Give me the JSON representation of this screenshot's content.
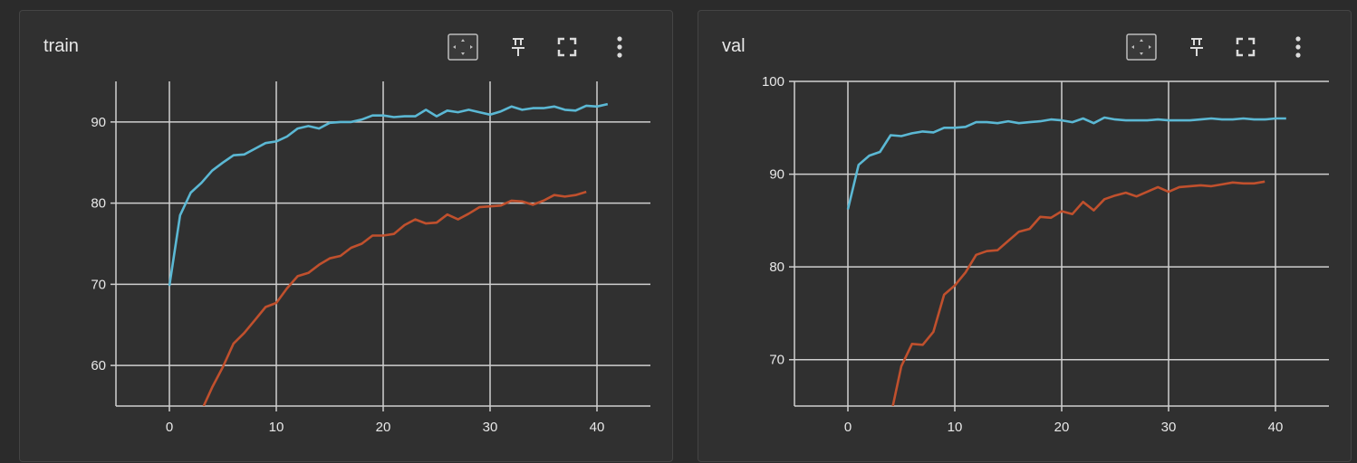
{
  "colors": {
    "background": "#2b2b2b",
    "card": "#303030",
    "grid": "#cfcfcf",
    "text": "#e8e8e8",
    "series_cyan": "#5bb8d4",
    "series_orange": "#c0502d"
  },
  "icons": {
    "fit": "fit-domain-icon",
    "pin": "pin-icon",
    "fullscreen": "fullscreen-icon",
    "more": "more-vert-icon"
  },
  "chart_data": [
    {
      "title": "train",
      "type": "line",
      "xlim": [
        -5,
        45
      ],
      "ylim": [
        55,
        95
      ],
      "xticks": [
        0,
        10,
        20,
        30,
        40
      ],
      "yticks": [
        60,
        70,
        80,
        90
      ],
      "xtick_labels": [
        "0",
        "10",
        "20",
        "30",
        "40"
      ],
      "ytick_labels": [
        "60",
        "70",
        "80",
        "90"
      ],
      "grid": true,
      "series": [
        {
          "color": "#5bb8d4",
          "x": [
            0,
            1,
            2,
            3,
            4,
            5,
            6,
            7,
            8,
            9,
            10,
            11,
            12,
            13,
            14,
            15,
            16,
            17,
            18,
            19,
            20,
            21,
            22,
            23,
            24,
            25,
            26,
            27,
            28,
            29,
            30,
            31,
            32,
            33,
            34,
            35,
            36,
            37,
            38,
            39,
            40,
            41
          ],
          "y": [
            69.8,
            78.5,
            81.3,
            82.5,
            84.0,
            85.0,
            85.9,
            86.0,
            86.7,
            87.4,
            87.6,
            88.2,
            89.2,
            89.5,
            89.2,
            89.9,
            90.0,
            90.0,
            90.3,
            90.8,
            90.8,
            90.6,
            90.7,
            90.7,
            91.5,
            90.7,
            91.4,
            91.2,
            91.5,
            91.2,
            90.9,
            91.3,
            91.9,
            91.5,
            91.7,
            91.7,
            91.9,
            91.5,
            91.4,
            92.0,
            91.9,
            92.2
          ]
        },
        {
          "color": "#c0502d",
          "x": [
            3.2,
            4,
            5,
            6,
            7,
            8,
            9,
            10,
            11,
            12,
            13,
            14,
            15,
            16,
            17,
            18,
            19,
            20,
            21,
            22,
            23,
            24,
            25,
            26,
            27,
            28,
            29,
            30,
            31,
            32,
            33,
            34,
            35,
            36,
            37,
            38,
            39
          ],
          "y": [
            55,
            57.3,
            59.8,
            62.7,
            64.0,
            65.6,
            67.2,
            67.7,
            69.5,
            71.0,
            71.4,
            72.4,
            73.2,
            73.5,
            74.5,
            75.0,
            76.0,
            76.0,
            76.2,
            77.3,
            78.0,
            77.5,
            77.6,
            78.6,
            78.0,
            78.7,
            79.5,
            79.6,
            79.7,
            80.3,
            80.2,
            79.8,
            80.3,
            81.0,
            80.8,
            81.0,
            81.4
          ]
        }
      ]
    },
    {
      "title": "val",
      "type": "line",
      "xlim": [
        -5,
        45
      ],
      "ylim": [
        65,
        100
      ],
      "xticks": [
        0,
        10,
        20,
        30,
        40
      ],
      "yticks": [
        70,
        80,
        90,
        100
      ],
      "xtick_labels": [
        "0",
        "10",
        "20",
        "30",
        "40"
      ],
      "ytick_labels": [
        "70",
        "80",
        "90",
        "100"
      ],
      "grid": true,
      "series": [
        {
          "color": "#5bb8d4",
          "x": [
            0,
            1,
            2,
            3,
            4,
            5,
            6,
            7,
            8,
            9,
            10,
            11,
            12,
            13,
            14,
            15,
            16,
            17,
            18,
            19,
            20,
            21,
            22,
            23,
            24,
            25,
            26,
            27,
            28,
            29,
            30,
            31,
            32,
            33,
            34,
            35,
            36,
            37,
            38,
            39,
            40,
            41
          ],
          "y": [
            86.2,
            91.0,
            92.0,
            92.4,
            94.2,
            94.1,
            94.4,
            94.6,
            94.5,
            95.0,
            95.0,
            95.1,
            95.6,
            95.6,
            95.5,
            95.7,
            95.5,
            95.6,
            95.7,
            95.9,
            95.8,
            95.6,
            96.0,
            95.5,
            96.1,
            95.9,
            95.8,
            95.8,
            95.8,
            95.9,
            95.8,
            95.8,
            95.8,
            95.9,
            96.0,
            95.9,
            95.9,
            96.0,
            95.9,
            95.9,
            96.0,
            96.0
          ]
        },
        {
          "color": "#c0502d",
          "x": [
            4.2,
            5,
            6,
            7,
            8,
            9,
            10,
            11,
            12,
            13,
            14,
            15,
            16,
            17,
            18,
            19,
            20,
            21,
            22,
            23,
            24,
            25,
            26,
            27,
            28,
            29,
            30,
            31,
            32,
            33,
            34,
            35,
            36,
            37,
            38,
            39
          ],
          "y": [
            65,
            69.3,
            71.7,
            71.6,
            73.0,
            77.0,
            78.0,
            79.4,
            81.3,
            81.7,
            81.8,
            82.8,
            83.8,
            84.1,
            85.4,
            85.3,
            86.0,
            85.7,
            87.0,
            86.1,
            87.3,
            87.7,
            88.0,
            87.6,
            88.1,
            88.6,
            88.1,
            88.6,
            88.7,
            88.8,
            88.7,
            88.9,
            89.1,
            89.0,
            89.0,
            89.2
          ]
        }
      ]
    }
  ]
}
